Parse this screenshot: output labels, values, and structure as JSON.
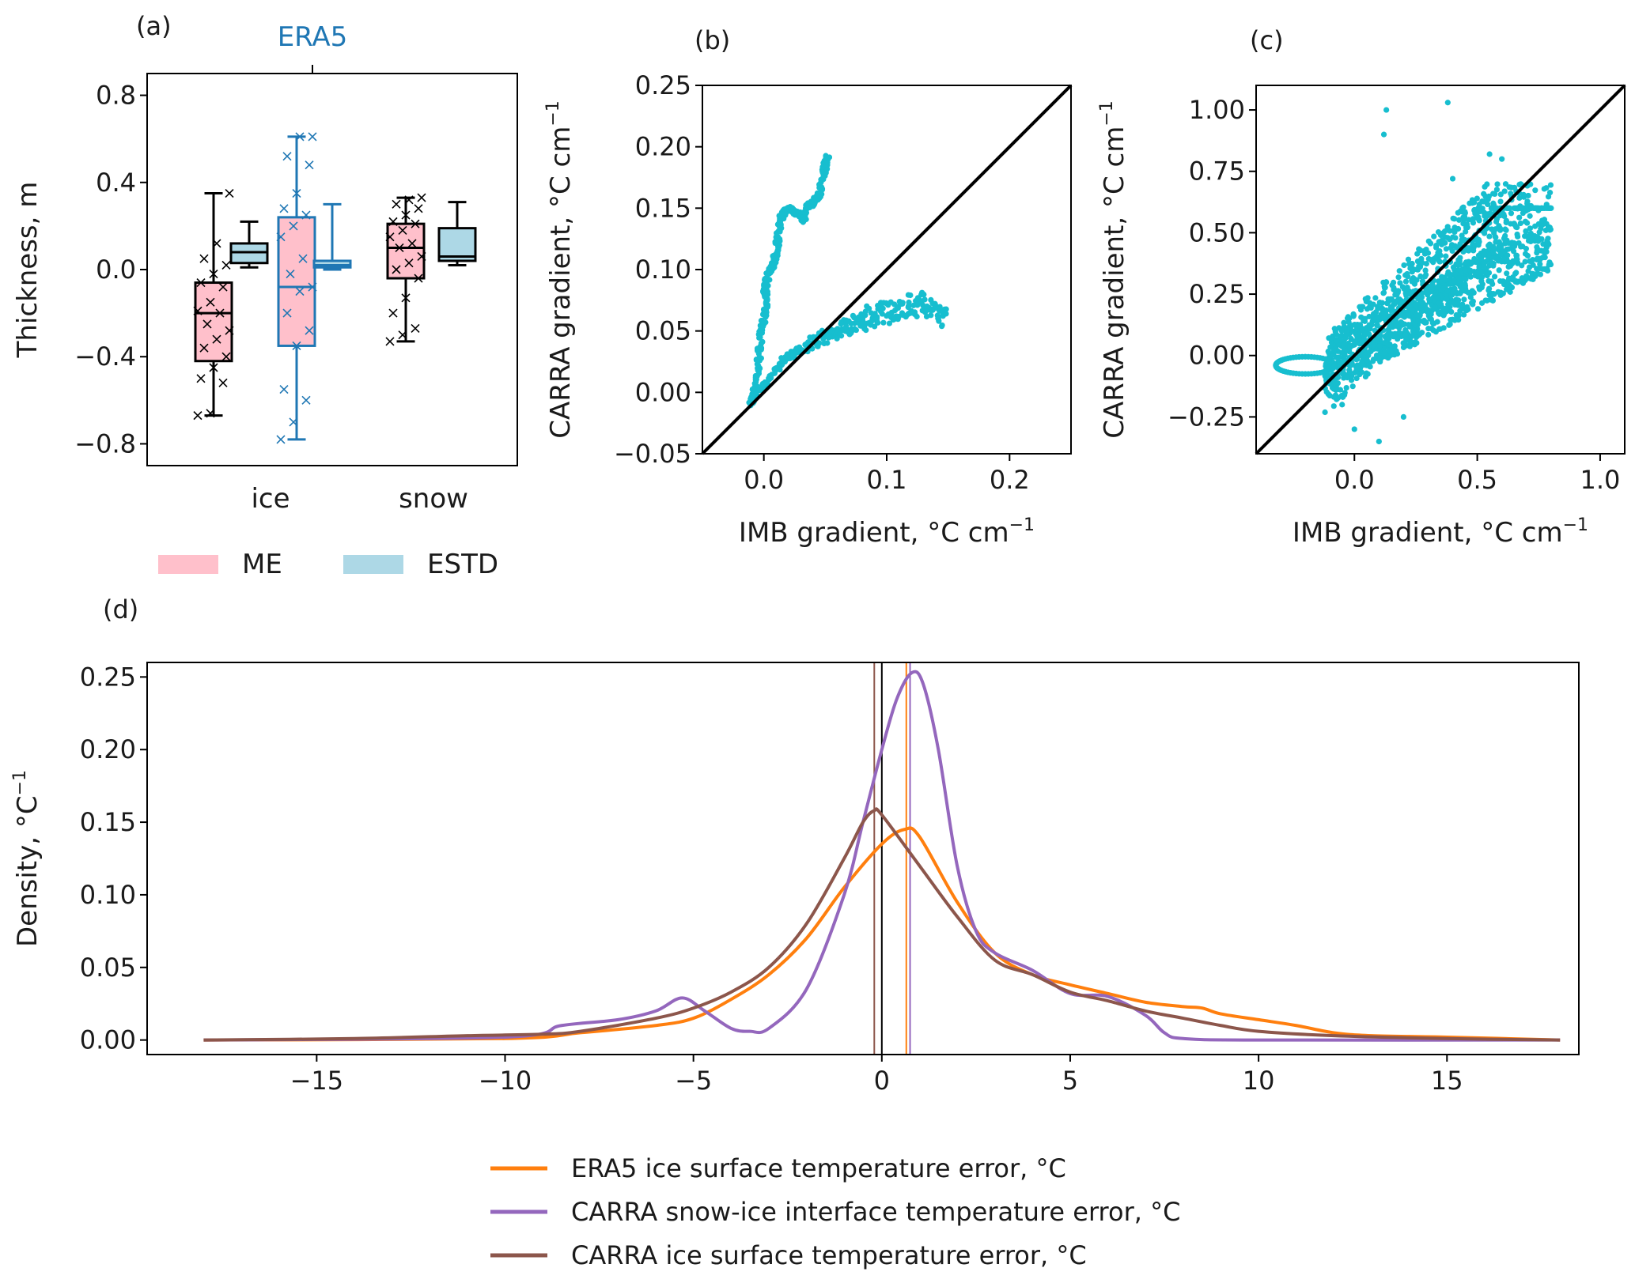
{
  "chart_data": [
    {
      "panel": "(a)",
      "type": "box",
      "title": "ERA5",
      "title_color": "#1f77b4",
      "ylabel": "Thickness, m",
      "ylim": [
        -0.9,
        0.9
      ],
      "yticks": [
        0.8,
        0.4,
        0.0,
        -0.4,
        -0.8
      ],
      "ytick_labels": [
        "0.8",
        "0.4",
        "0.0",
        "−0.4",
        "−0.8"
      ],
      "categories": [
        "ice",
        "snow"
      ],
      "legend": [
        {
          "label": "ME",
          "color": "#ffc0cb"
        },
        {
          "label": "ESTD",
          "color": "#add8e6"
        }
      ],
      "boxes": [
        {
          "group": "ice",
          "stat": "ME",
          "source": "CARRA",
          "edge": "#000000",
          "fill": "#ffc0cb",
          "whislo": -0.67,
          "q1": -0.42,
          "med": -0.2,
          "q3": -0.06,
          "whishi": 0.35,
          "points": [
            -0.67,
            -0.66,
            -0.52,
            -0.5,
            -0.45,
            -0.4,
            -0.36,
            -0.32,
            -0.28,
            -0.25,
            -0.2,
            -0.19,
            -0.15,
            -0.08,
            -0.06,
            -0.02,
            0.02,
            0.05,
            0.12,
            0.35
          ]
        },
        {
          "group": "ice",
          "stat": "ESTD",
          "source": "CARRA",
          "edge": "#000000",
          "fill": "#add8e6",
          "whislo": 0.01,
          "q1": 0.03,
          "med": 0.08,
          "q3": 0.12,
          "whishi": 0.22,
          "points": []
        },
        {
          "group": "ice",
          "stat": "ME",
          "source": "ERA5",
          "edge": "#1f77b4",
          "fill": "#ffc0cb",
          "whislo": -0.78,
          "q1": -0.35,
          "med": -0.08,
          "q3": 0.24,
          "whishi": 0.61,
          "points": [
            -0.78,
            -0.7,
            -0.6,
            -0.55,
            -0.35,
            -0.28,
            -0.2,
            -0.1,
            -0.08,
            -0.02,
            0.05,
            0.15,
            0.2,
            0.25,
            0.28,
            0.35,
            0.48,
            0.52,
            0.61,
            0.61
          ]
        },
        {
          "group": "ice",
          "stat": "ESTD",
          "source": "ERA5",
          "edge": "#1f77b4",
          "fill": "#add8e6",
          "whislo": 0.0,
          "q1": 0.01,
          "med": 0.02,
          "q3": 0.04,
          "whishi": 0.3,
          "points": []
        },
        {
          "group": "snow",
          "stat": "ME",
          "source": "CARRA",
          "edge": "#000000",
          "fill": "#ffc0cb",
          "whislo": -0.33,
          "q1": -0.04,
          "med": 0.1,
          "q3": 0.21,
          "whishi": 0.33,
          "points": [
            -0.33,
            -0.3,
            -0.27,
            -0.2,
            -0.13,
            -0.04,
            0.0,
            0.03,
            0.06,
            0.1,
            0.12,
            0.15,
            0.18,
            0.21,
            0.22,
            0.25,
            0.28,
            0.3,
            0.32,
            0.33
          ]
        },
        {
          "group": "snow",
          "stat": "ESTD",
          "source": "CARRA",
          "edge": "#000000",
          "fill": "#add8e6",
          "whislo": 0.02,
          "q1": 0.04,
          "med": 0.06,
          "q3": 0.19,
          "whishi": 0.31,
          "points": []
        }
      ]
    },
    {
      "panel": "(b)",
      "type": "scatter",
      "xlabel": "IMB gradient, °C cm",
      "ylabel": "CARRA gradient, °C cm",
      "unit_exponent": "−1",
      "xlim": [
        -0.05,
        0.25
      ],
      "ylim": [
        -0.05,
        0.25
      ],
      "xticks": [
        0.0,
        0.1,
        0.2
      ],
      "xtick_labels": [
        "0.0",
        "0.1",
        "0.2"
      ],
      "yticks": [
        -0.05,
        0.0,
        0.05,
        0.1,
        0.15,
        0.2,
        0.25
      ],
      "ytick_labels": [
        "−0.05",
        "0.00",
        "0.05",
        "0.10",
        "0.15",
        "0.20",
        "0.25"
      ],
      "color": "#17becf",
      "one_to_one_line": true,
      "series": [
        {
          "name": "branch",
          "x": [
            -0.01,
            -0.008,
            -0.005,
            -0.003,
            0.0,
            0.002,
            0.001,
            0.003,
            0.005,
            0.008,
            0.01,
            0.012,
            0.015,
            0.02,
            0.025,
            0.03,
            0.032,
            0.035,
            0.04,
            0.045,
            0.048,
            0.05,
            0.052
          ],
          "y": [
            -0.01,
            0.0,
            0.02,
            0.04,
            0.06,
            0.075,
            0.085,
            0.095,
            0.1,
            0.105,
            0.115,
            0.13,
            0.145,
            0.15,
            0.147,
            0.145,
            0.14,
            0.15,
            0.155,
            0.16,
            0.175,
            0.185,
            0.192
          ]
        },
        {
          "name": "main",
          "x": [
            -0.01,
            0.0,
            0.01,
            0.02,
            0.03,
            0.04,
            0.05,
            0.06,
            0.07,
            0.08,
            0.09,
            0.1,
            0.11,
            0.12,
            0.13,
            0.14,
            0.148
          ],
          "y": [
            -0.005,
            0.005,
            0.02,
            0.03,
            0.035,
            0.04,
            0.045,
            0.05,
            0.055,
            0.058,
            0.062,
            0.065,
            0.068,
            0.07,
            0.072,
            0.065,
            0.06
          ]
        }
      ]
    },
    {
      "panel": "(c)",
      "type": "scatter",
      "xlabel": "IMB gradient, °C cm",
      "ylabel": "CARRA gradient, °C cm",
      "unit_exponent": "−1",
      "xlim": [
        -0.4,
        1.1
      ],
      "ylim": [
        -0.4,
        1.1
      ],
      "xticks": [
        0.0,
        0.5,
        1.0
      ],
      "xtick_labels": [
        "0.0",
        "0.5",
        "1.0"
      ],
      "yticks": [
        -0.25,
        0.0,
        0.25,
        0.5,
        0.75,
        1.0
      ],
      "ytick_labels": [
        "−0.25",
        "0.00",
        "0.25",
        "0.50",
        "0.75",
        "1.00"
      ],
      "color": "#17becf",
      "one_to_one_line": true
    },
    {
      "panel": "(d)",
      "type": "line",
      "ylabel": "Density, °C",
      "unit_exponent": "−1",
      "xlim": [
        -19.5,
        18.5
      ],
      "ylim": [
        -0.01,
        0.26
      ],
      "xticks": [
        -15,
        -10,
        -5,
        0,
        5,
        10,
        15
      ],
      "xtick_labels": [
        "−15",
        "−10",
        "−5",
        "0",
        "5",
        "10",
        "15"
      ],
      "yticks": [
        0.0,
        0.05,
        0.1,
        0.15,
        0.2,
        0.25
      ],
      "ytick_labels": [
        "0.00",
        "0.05",
        "0.10",
        "0.15",
        "0.20",
        "0.25"
      ],
      "vlines": [
        {
          "x": 0,
          "color": "#000000"
        },
        {
          "x": -0.2,
          "color": "#8c564b"
        },
        {
          "x": 0.65,
          "color": "#ff7f0e"
        },
        {
          "x": 0.75,
          "color": "#9467bd"
        }
      ],
      "series": [
        {
          "name": "ERA5 ice surface temperature error, °C",
          "color": "#ff7f0e",
          "x": [
            -18,
            -10,
            -8,
            -6,
            -5,
            -4,
            -3,
            -2,
            -1,
            0,
            0.6,
            1,
            2,
            3,
            4,
            5,
            6,
            7,
            8,
            8.5,
            9,
            10,
            11,
            12,
            13,
            15,
            18
          ],
          "y": [
            0,
            0.001,
            0.005,
            0.01,
            0.015,
            0.028,
            0.045,
            0.07,
            0.105,
            0.135,
            0.145,
            0.14,
            0.095,
            0.06,
            0.045,
            0.038,
            0.032,
            0.026,
            0.023,
            0.022,
            0.018,
            0.014,
            0.01,
            0.005,
            0.003,
            0.002,
            0.0
          ]
        },
        {
          "name": "CARRA snow-ice interface temperature error, °C",
          "color": "#9467bd",
          "x": [
            -18,
            -10,
            -8.5,
            -7,
            -6,
            -5.3,
            -4.7,
            -4,
            -3.5,
            -3,
            -2,
            -1,
            -0.5,
            0,
            0.4,
            0.8,
            1.1,
            1.5,
            2,
            2.5,
            3,
            4,
            5,
            6,
            7,
            7.5,
            8,
            10,
            18
          ],
          "y": [
            0,
            0.002,
            0.01,
            0.014,
            0.02,
            0.029,
            0.02,
            0.008,
            0.006,
            0.008,
            0.035,
            0.1,
            0.15,
            0.2,
            0.235,
            0.253,
            0.245,
            0.2,
            0.12,
            0.075,
            0.06,
            0.048,
            0.032,
            0.03,
            0.017,
            0.005,
            0.001,
            0.0,
            0.0
          ]
        },
        {
          "name": "CARRA ice surface temperature error, °C",
          "color": "#8c564b",
          "x": [
            -18,
            -14,
            -11,
            -9,
            -8,
            -6,
            -5,
            -4,
            -3,
            -2,
            -1,
            -0.5,
            -0.2,
            0,
            1,
            2,
            3,
            4,
            5,
            6,
            7,
            8,
            9,
            10,
            12,
            15,
            18
          ],
          "y": [
            0,
            0.001,
            0.003,
            0.004,
            0.006,
            0.015,
            0.022,
            0.033,
            0.05,
            0.08,
            0.125,
            0.15,
            0.158,
            0.155,
            0.12,
            0.085,
            0.055,
            0.045,
            0.033,
            0.027,
            0.02,
            0.015,
            0.01,
            0.006,
            0.003,
            0.001,
            0.0
          ]
        }
      ]
    }
  ]
}
